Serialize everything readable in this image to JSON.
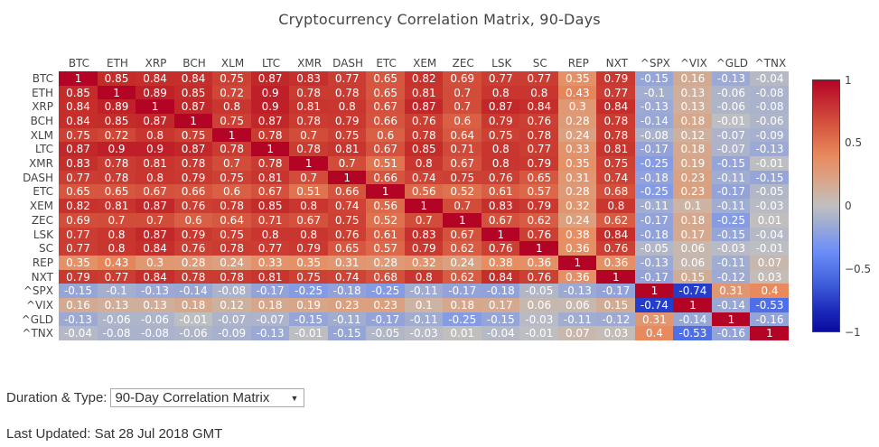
{
  "page": {
    "title": "Cryptocurrency Correlation Matrix, 90-Days",
    "controls": {
      "duration_label": "Duration & Type:",
      "duration_selected": "90-Day Correlation Matrix",
      "caret_icon": "▼"
    },
    "last_updated": "Last Updated: Sat 28 Jul 2018 GMT"
  },
  "colorbar": {
    "ticks": [
      "1",
      "0.5",
      "0",
      "−0.5",
      "−1"
    ],
    "colors": {
      "max": "#b40426",
      "mid": "#c0c0c0",
      "min": "#0b0ba0"
    }
  },
  "chart_data": {
    "type": "heatmap",
    "title": "Cryptocurrency Correlation Matrix, 90-Days",
    "x": [
      "BTC",
      "ETH",
      "XRP",
      "BCH",
      "XLM",
      "LTC",
      "XMR",
      "DASH",
      "ETC",
      "XEM",
      "ZEC",
      "LSK",
      "SC",
      "REP",
      "NXT",
      "^SPX",
      "^VIX",
      "^GLD",
      "^TNX"
    ],
    "y": [
      "BTC",
      "ETH",
      "XRP",
      "BCH",
      "XLM",
      "LTC",
      "XMR",
      "DASH",
      "ETC",
      "XEM",
      "ZEC",
      "LSK",
      "SC",
      "REP",
      "NXT",
      "^SPX",
      "^VIX",
      "^GLD",
      "^TNX"
    ],
    "zlim": [
      -1,
      1
    ],
    "colorscale": "coolwarm",
    "z": [
      [
        1,
        0.85,
        0.84,
        0.84,
        0.75,
        0.87,
        0.83,
        0.77,
        0.65,
        0.82,
        0.69,
        0.77,
        0.77,
        0.35,
        0.79,
        -0.15,
        0.16,
        -0.13,
        -0.04
      ],
      [
        0.85,
        1,
        0.89,
        0.85,
        0.72,
        0.9,
        0.78,
        0.78,
        0.65,
        0.81,
        0.7,
        0.8,
        0.8,
        0.43,
        0.77,
        -0.1,
        0.13,
        -0.06,
        -0.08
      ],
      [
        0.84,
        0.89,
        1,
        0.87,
        0.8,
        0.9,
        0.81,
        0.8,
        0.67,
        0.87,
        0.7,
        0.87,
        0.84,
        0.3,
        0.84,
        -0.13,
        0.13,
        -0.06,
        -0.08
      ],
      [
        0.84,
        0.85,
        0.87,
        1,
        0.75,
        0.87,
        0.78,
        0.79,
        0.66,
        0.76,
        0.6,
        0.79,
        0.76,
        0.28,
        0.78,
        -0.14,
        0.18,
        -0.01,
        -0.06
      ],
      [
        0.75,
        0.72,
        0.8,
        0.75,
        1,
        0.78,
        0.7,
        0.75,
        0.6,
        0.78,
        0.64,
        0.75,
        0.78,
        0.24,
        0.78,
        -0.08,
        0.12,
        -0.07,
        -0.09
      ],
      [
        0.87,
        0.9,
        0.9,
        0.87,
        0.78,
        1,
        0.78,
        0.81,
        0.67,
        0.85,
        0.71,
        0.8,
        0.77,
        0.33,
        0.81,
        -0.17,
        0.18,
        -0.07,
        -0.13
      ],
      [
        0.83,
        0.78,
        0.81,
        0.78,
        0.7,
        0.78,
        1,
        0.7,
        0.51,
        0.8,
        0.67,
        0.8,
        0.79,
        0.35,
        0.75,
        -0.25,
        0.19,
        -0.15,
        -0.01
      ],
      [
        0.77,
        0.78,
        0.8,
        0.79,
        0.75,
        0.81,
        0.7,
        1,
        0.66,
        0.74,
        0.75,
        0.76,
        0.65,
        0.31,
        0.74,
        -0.18,
        0.23,
        -0.11,
        -0.15
      ],
      [
        0.65,
        0.65,
        0.67,
        0.66,
        0.6,
        0.67,
        0.51,
        0.66,
        1,
        0.56,
        0.52,
        0.61,
        0.57,
        0.28,
        0.68,
        -0.25,
        0.23,
        -0.17,
        -0.05
      ],
      [
        0.82,
        0.81,
        0.87,
        0.76,
        0.78,
        0.85,
        0.8,
        0.74,
        0.56,
        1,
        0.7,
        0.83,
        0.79,
        0.32,
        0.8,
        -0.11,
        0.1,
        -0.11,
        -0.03
      ],
      [
        0.69,
        0.7,
        0.7,
        0.6,
        0.64,
        0.71,
        0.67,
        0.75,
        0.52,
        0.7,
        1,
        0.67,
        0.62,
        0.24,
        0.62,
        -0.17,
        0.18,
        -0.25,
        0.01
      ],
      [
        0.77,
        0.8,
        0.87,
        0.79,
        0.75,
        0.8,
        0.8,
        0.76,
        0.61,
        0.83,
        0.67,
        1,
        0.76,
        0.38,
        0.84,
        -0.18,
        0.17,
        -0.15,
        -0.04
      ],
      [
        0.77,
        0.8,
        0.84,
        0.76,
        0.78,
        0.77,
        0.79,
        0.65,
        0.57,
        0.79,
        0.62,
        0.76,
        1,
        0.36,
        0.76,
        -0.05,
        0.06,
        -0.03,
        -0.01
      ],
      [
        0.35,
        0.43,
        0.3,
        0.28,
        0.24,
        0.33,
        0.35,
        0.31,
        0.28,
        0.32,
        0.24,
        0.38,
        0.36,
        1,
        0.36,
        -0.13,
        0.06,
        -0.11,
        0.07
      ],
      [
        0.79,
        0.77,
        0.84,
        0.78,
        0.78,
        0.81,
        0.75,
        0.74,
        0.68,
        0.8,
        0.62,
        0.84,
        0.76,
        0.36,
        1,
        -0.17,
        0.15,
        -0.12,
        0.03
      ],
      [
        -0.15,
        -0.1,
        -0.13,
        -0.14,
        -0.08,
        -0.17,
        -0.25,
        -0.18,
        -0.25,
        -0.11,
        -0.17,
        -0.18,
        -0.05,
        -0.13,
        -0.17,
        1,
        -0.74,
        0.31,
        0.4
      ],
      [
        0.16,
        0.13,
        0.13,
        0.18,
        0.12,
        0.18,
        0.19,
        0.23,
        0.23,
        0.1,
        0.18,
        0.17,
        0.06,
        0.06,
        0.15,
        -0.74,
        1,
        -0.14,
        -0.53
      ],
      [
        -0.13,
        -0.06,
        -0.06,
        -0.01,
        -0.07,
        -0.07,
        -0.15,
        -0.11,
        -0.17,
        -0.11,
        -0.25,
        -0.15,
        -0.03,
        -0.11,
        -0.12,
        0.31,
        -0.14,
        1,
        -0.16
      ],
      [
        -0.04,
        -0.08,
        -0.08,
        -0.06,
        -0.09,
        -0.13,
        -0.01,
        -0.15,
        -0.05,
        -0.03,
        0.01,
        -0.04,
        -0.01,
        0.07,
        0.03,
        0.4,
        -0.53,
        -0.16,
        1
      ]
    ],
    "legend": {
      "position": "right",
      "ticks": [
        1,
        0.5,
        0,
        -0.5,
        -1
      ]
    },
    "grid": false
  }
}
